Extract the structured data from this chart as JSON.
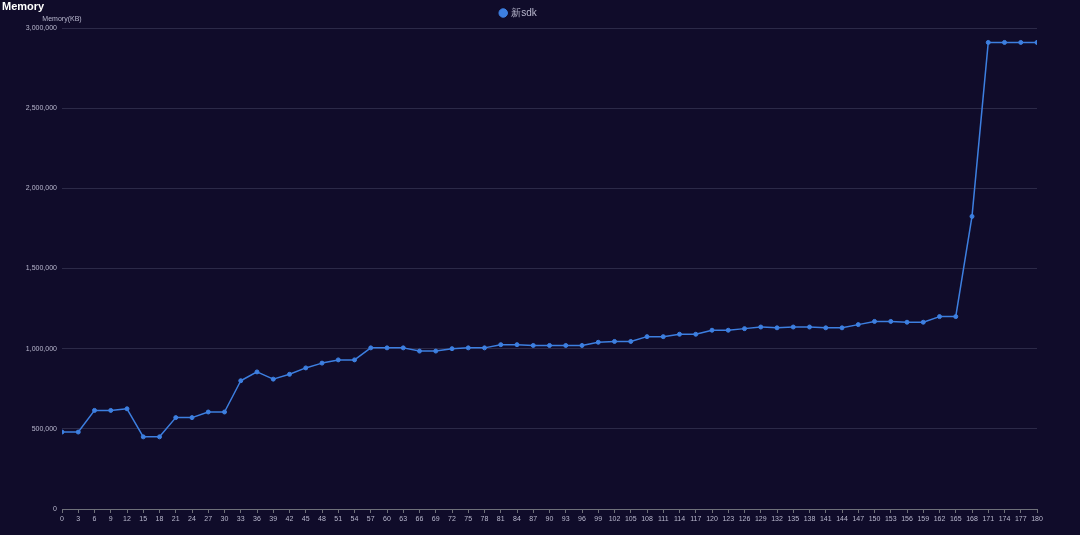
{
  "chart_data": {
    "type": "line",
    "title": "Memory",
    "ylabel": "Memory(KB)",
    "x": [
      0,
      3,
      6,
      9,
      12,
      15,
      18,
      21,
      24,
      27,
      30,
      33,
      36,
      39,
      42,
      45,
      48,
      51,
      54,
      57,
      60,
      63,
      66,
      69,
      72,
      75,
      78,
      81,
      84,
      87,
      90,
      93,
      96,
      99,
      102,
      105,
      108,
      111,
      114,
      117,
      120,
      123,
      126,
      129,
      132,
      135,
      138,
      141,
      144,
      147,
      150,
      153,
      156,
      159,
      162,
      165,
      168,
      171,
      174,
      177,
      180
    ],
    "xlim": [
      0,
      180
    ],
    "xticks": [
      0,
      3,
      6,
      9,
      12,
      15,
      18,
      21,
      24,
      27,
      30,
      33,
      36,
      39,
      42,
      45,
      48,
      51,
      54,
      57,
      60,
      63,
      66,
      69,
      72,
      75,
      78,
      81,
      84,
      87,
      90,
      93,
      96,
      99,
      102,
      105,
      108,
      111,
      114,
      117,
      120,
      123,
      126,
      129,
      132,
      135,
      138,
      141,
      144,
      147,
      150,
      153,
      156,
      159,
      162,
      165,
      168,
      171,
      174,
      177,
      180
    ],
    "ylim": [
      0,
      3000000
    ],
    "yticks": [
      0,
      {
        "value": 500000,
        "label": "500,000"
      },
      {
        "value": 1000000,
        "label": "1,000,000"
      },
      {
        "value": 1500000,
        "label": "1,500,000"
      },
      {
        "value": 2000000,
        "label": "2,000,000"
      },
      {
        "value": 2500000,
        "label": "2,500,000"
      },
      {
        "value": 3000000,
        "label": "3,000,000"
      }
    ],
    "series": [
      {
        "name": "新sdk",
        "color": "#3d7fe0",
        "values": [
          480000,
          480000,
          615000,
          615000,
          625000,
          450000,
          450000,
          570000,
          570000,
          605000,
          605000,
          800000,
          855000,
          810000,
          840000,
          880000,
          910000,
          930000,
          930000,
          1005000,
          1005000,
          1005000,
          985000,
          985000,
          1000000,
          1005000,
          1005000,
          1025000,
          1025000,
          1020000,
          1020000,
          1020000,
          1020000,
          1040000,
          1045000,
          1045000,
          1075000,
          1075000,
          1090000,
          1090000,
          1115000,
          1115000,
          1125000,
          1135000,
          1130000,
          1135000,
          1135000,
          1130000,
          1130000,
          1150000,
          1170000,
          1170000,
          1165000,
          1165000,
          1200000,
          1200000,
          1825000,
          2910000,
          2910000,
          2910000,
          2910000
        ]
      }
    ],
    "grid": "y",
    "legend": "top",
    "marker": "circle",
    "line_style": "solid"
  }
}
